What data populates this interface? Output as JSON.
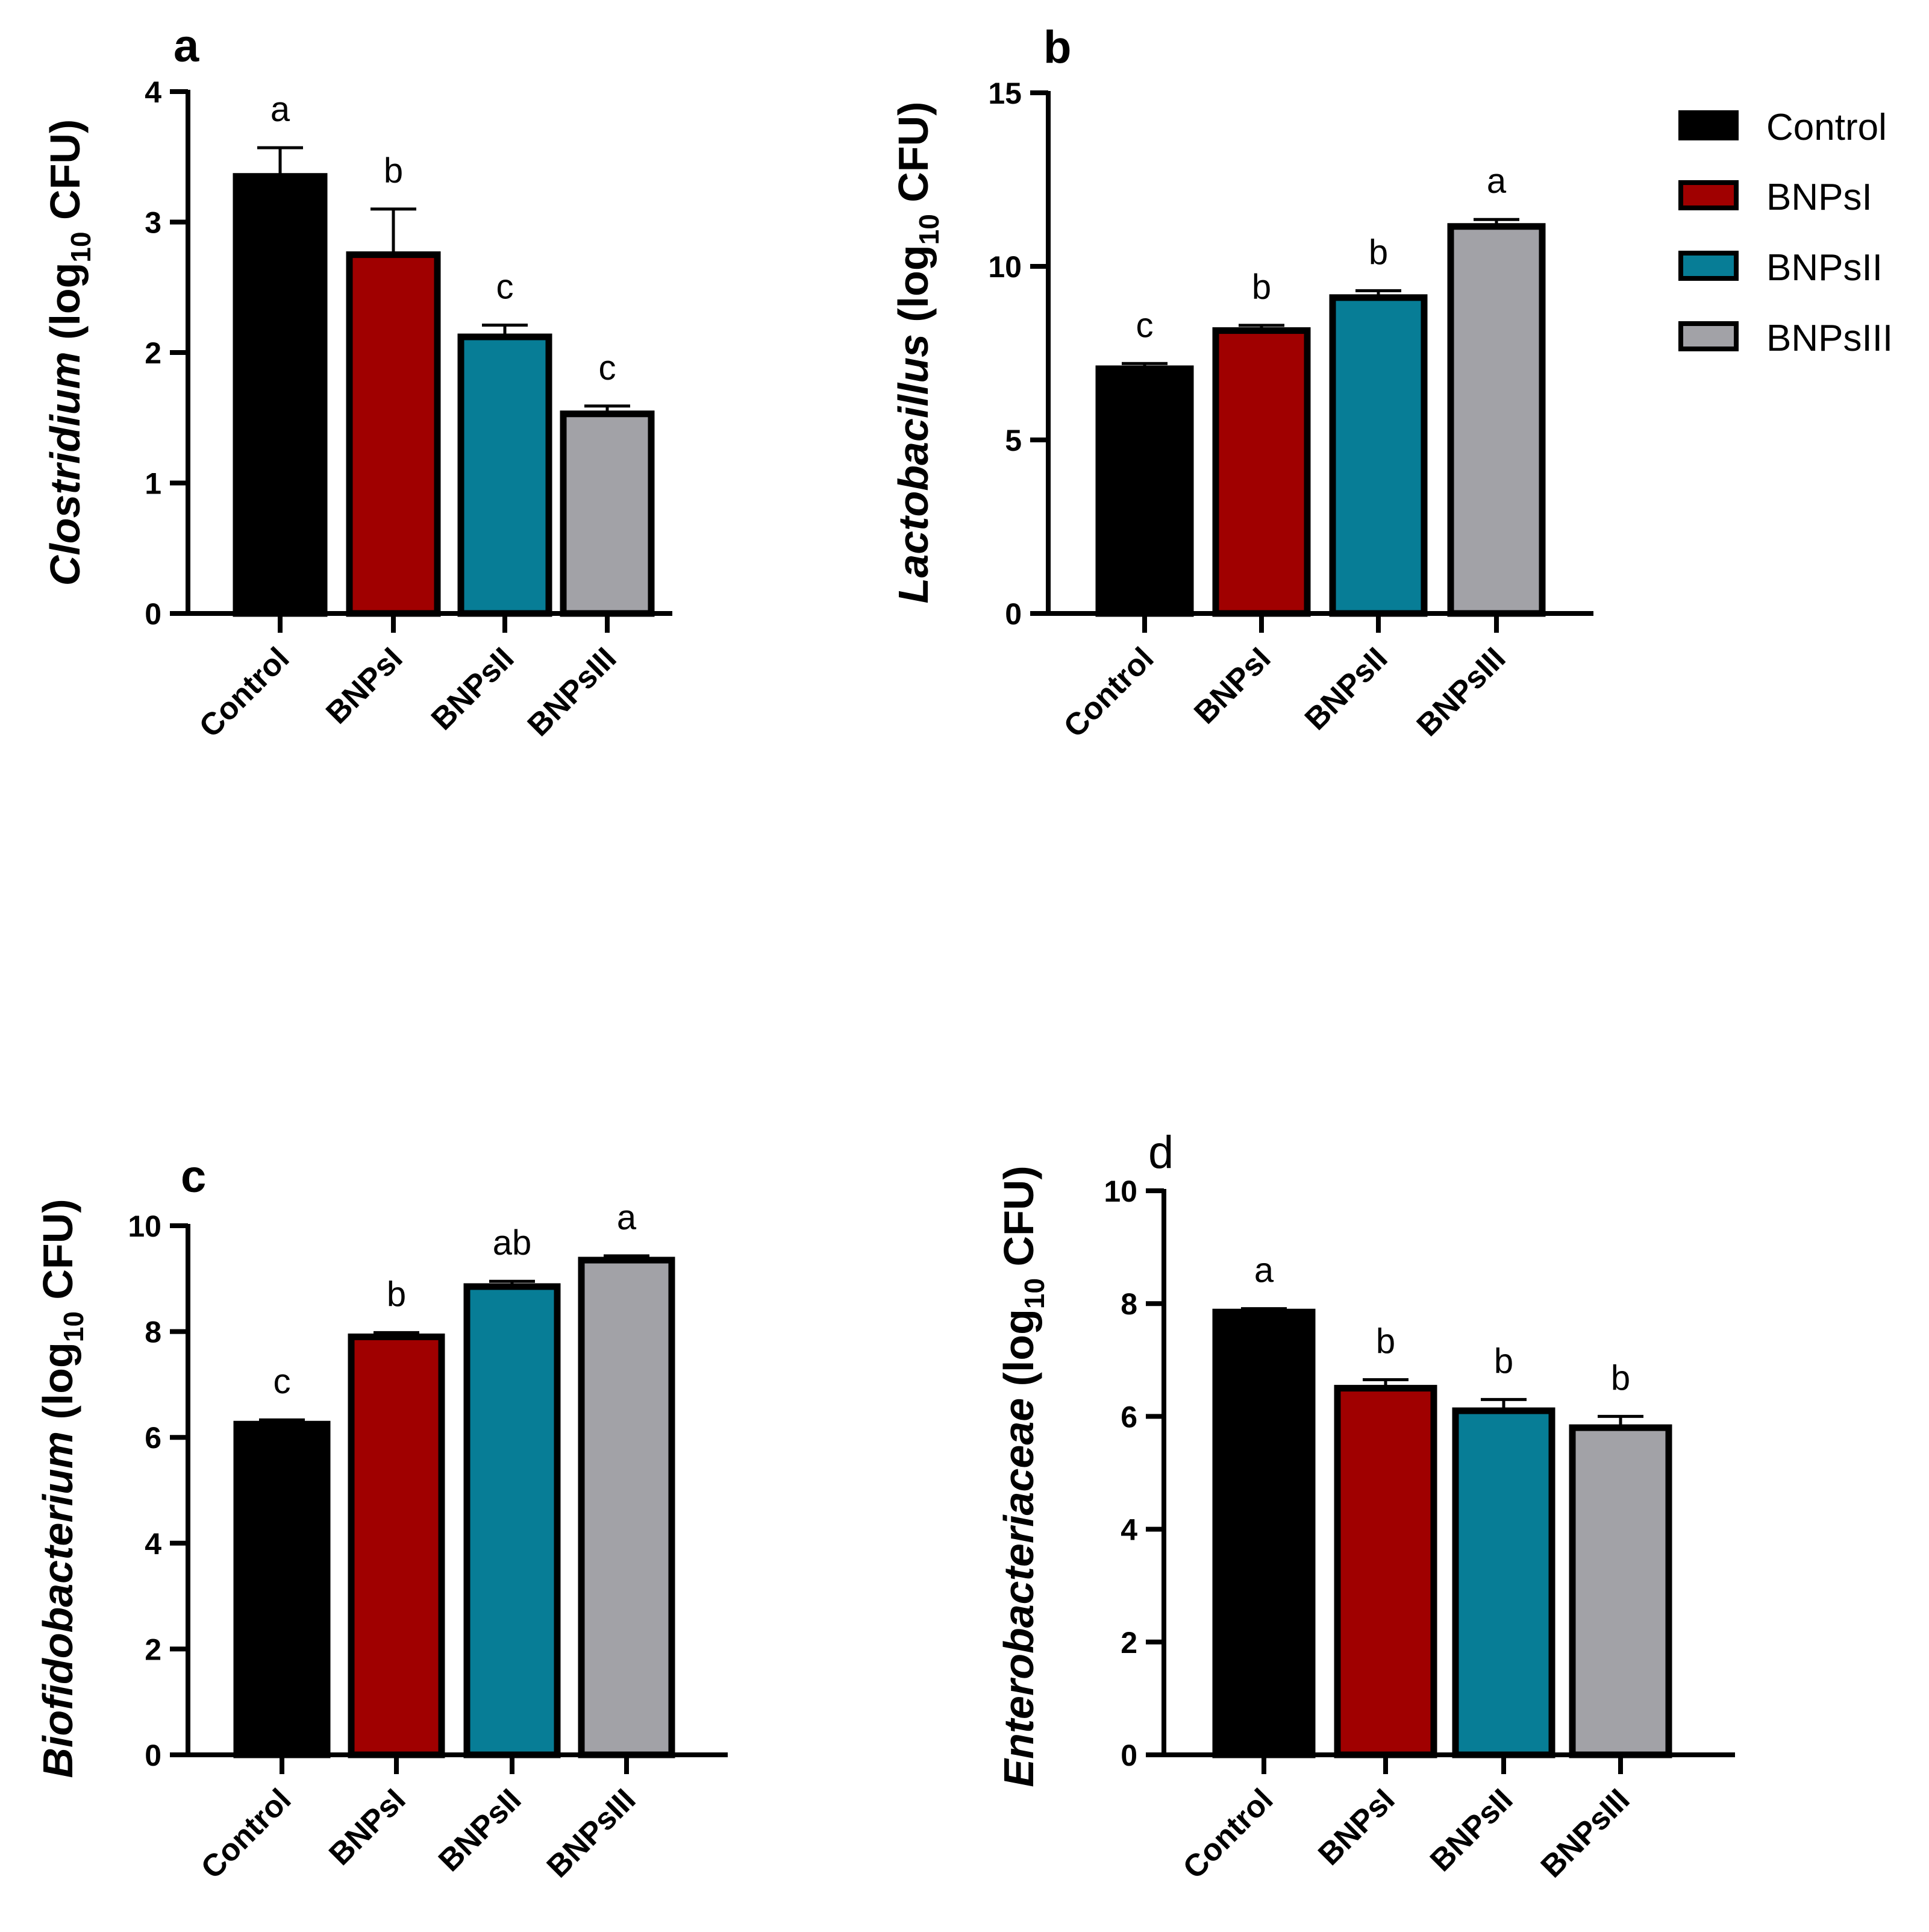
{
  "colors": {
    "Control": "#000000",
    "BNPsI": "#a00000",
    "BNPsII": "#077d96",
    "BNPsIII": "#a2a2a7",
    "outline": "#000000"
  },
  "legend": {
    "placement": "top-right",
    "entries": [
      "Control",
      "BNPsI",
      "BNPsII",
      "BNPsIII"
    ]
  },
  "chart_data": [
    {
      "type": "bar",
      "panel": "a",
      "ylabel_italic": "Clostridium",
      "ylabel_rest": " (log",
      "ylabel_sub": "10",
      "ylabel_unit": " CFU)",
      "categories": [
        "Control",
        "BNPsI",
        "BNPsII",
        "BNPsIII"
      ],
      "values": [
        3.35,
        2.75,
        2.12,
        1.53
      ],
      "errors": [
        0.22,
        0.35,
        0.09,
        0.06
      ],
      "significance": [
        "a",
        "b",
        "c",
        "c"
      ],
      "ylim": [
        0,
        4
      ],
      "yticks": [
        0,
        1,
        2,
        3,
        4
      ],
      "ytick_labels": [
        "0",
        "1",
        "2",
        "3",
        "4"
      ],
      "grid": false
    },
    {
      "type": "bar",
      "panel": "b",
      "ylabel_italic": "Lactobacillus",
      "ylabel_rest": " (log",
      "ylabel_sub": "10",
      "ylabel_unit": " CFU)",
      "categories": [
        "Control",
        "BNPsI",
        "BNPsII",
        "BNPsIII"
      ],
      "values": [
        7.05,
        8.15,
        9.1,
        11.15
      ],
      "errors": [
        0.15,
        0.15,
        0.2,
        0.2
      ],
      "significance": [
        "c",
        "b",
        "b",
        "a"
      ],
      "ylim": [
        0,
        15
      ],
      "yticks": [
        0,
        5,
        10,
        15
      ],
      "ytick_labels": [
        "0",
        "5",
        "10",
        "15"
      ],
      "grid": false
    },
    {
      "type": "bar",
      "panel": "c",
      "ylabel_italic": "Biofidobacterium",
      "ylabel_rest": " (log",
      "ylabel_sub": "10",
      "ylabel_unit": " CFU)",
      "categories": [
        "Control",
        "BNPsI",
        "BNPsII",
        "BNPsIII"
      ],
      "values": [
        6.25,
        7.9,
        8.85,
        9.35
      ],
      "errors": [
        0.08,
        0.08,
        0.1,
        0.08
      ],
      "significance": [
        "c",
        "b",
        "ab",
        "a"
      ],
      "ylim": [
        0,
        10
      ],
      "yticks": [
        0,
        2,
        4,
        6,
        8,
        10
      ],
      "ytick_labels": [
        "0",
        "2",
        "4",
        "6",
        "8",
        "10"
      ],
      "grid": false
    },
    {
      "type": "bar",
      "panel": "d",
      "ylabel_italic": "Enterobacteriaceae",
      "ylabel_rest": " (log",
      "ylabel_sub": "10",
      "ylabel_unit": " CFU)",
      "categories": [
        "Control",
        "BNPsI",
        "BNPsII",
        "BNPsIII"
      ],
      "values": [
        7.85,
        6.5,
        6.1,
        5.8
      ],
      "errors": [
        0.06,
        0.15,
        0.2,
        0.2
      ],
      "significance": [
        "a",
        "b",
        "b",
        "b"
      ],
      "ylim": [
        0,
        10
      ],
      "yticks": [
        0,
        2,
        4,
        6,
        8,
        10
      ],
      "ytick_labels": [
        "0",
        "2",
        "4",
        "6",
        "8",
        "10"
      ],
      "grid": false
    }
  ]
}
